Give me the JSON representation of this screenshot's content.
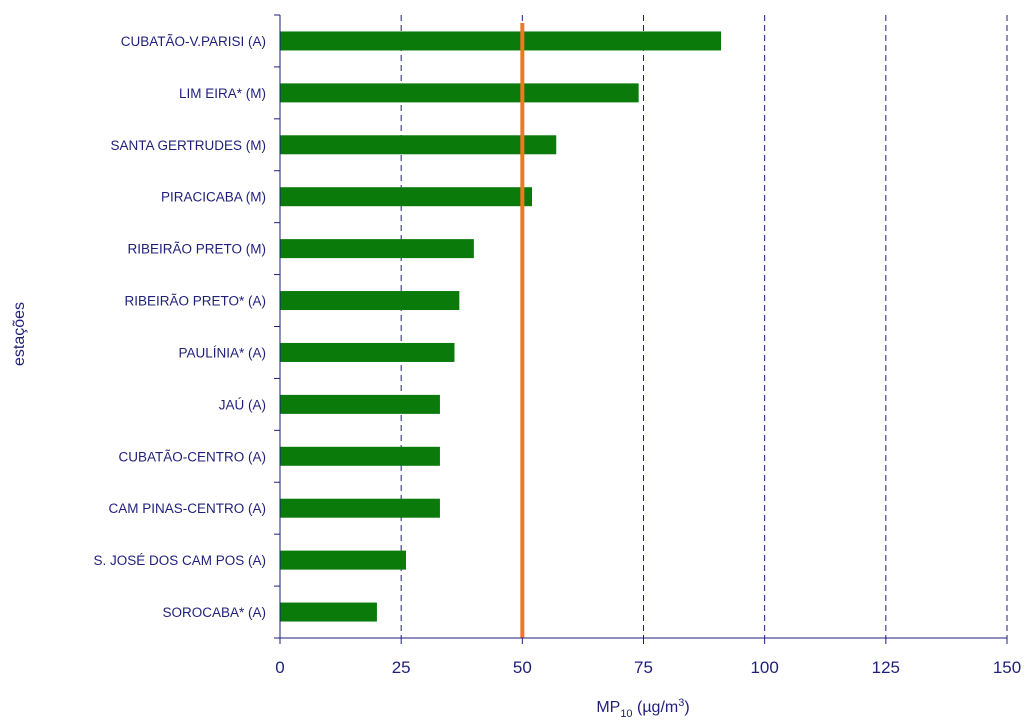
{
  "chart_data": {
    "type": "bar",
    "orientation": "horizontal",
    "categories": [
      "CUBATÃO-V.PARISI (A)",
      "LIM EIRA* (M)",
      "SANTA GERTRUDES (M)",
      "PIRACICABA (M)",
      "RIBEIRÃO PRETO (M)",
      "RIBEIRÃO PRETO* (A)",
      "PAULÍNIA* (A)",
      "JAÚ (A)",
      "CUBATÃO-CENTRO (A)",
      "CAM PINAS-CENTRO (A)",
      "S. JOSÉ DOS CAM POS (A)",
      "SOROCABA* (A)"
    ],
    "values": [
      91,
      74,
      57,
      52,
      40,
      37,
      36,
      33,
      33,
      33,
      26,
      20
    ],
    "xlim": [
      0,
      150
    ],
    "xticks": [
      0,
      25,
      50,
      75,
      100,
      125,
      150
    ],
    "xlabel": {
      "main": "MP",
      "subscript": "10",
      "unit_open": " (µg/m",
      "superscript": "3",
      "unit_close": ")"
    },
    "ylabel": "estações",
    "reference_line": {
      "value": 50
    },
    "grid": "vertical dashed",
    "colors": {
      "bar": "#0a7a0a",
      "reference_line": "#f07820",
      "text": "#1f1f7a",
      "axis": "#1f1f7a",
      "grid": "#1f1f7a"
    }
  }
}
